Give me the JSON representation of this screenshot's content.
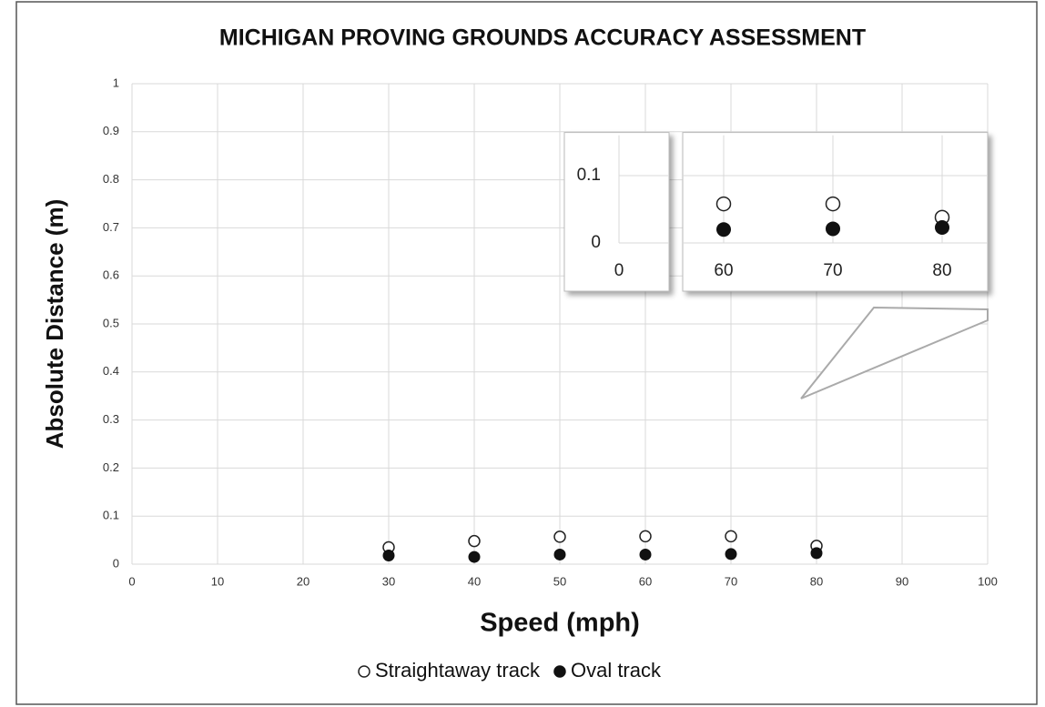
{
  "chart_data": {
    "type": "scatter",
    "title": "MICHIGAN PROVING GROUNDS ACCURACY ASSESSMENT",
    "x_label": "Speed (mph)",
    "y_label": "Absolute Distance (m)",
    "xlim": [
      0,
      100
    ],
    "xticks": [
      0,
      10,
      20,
      30,
      40,
      50,
      60,
      70,
      80,
      90,
      100
    ],
    "ylim": [
      0,
      1
    ],
    "yticks": [
      0,
      0.1,
      0.2,
      0.3,
      0.4,
      0.5,
      0.6,
      0.7,
      0.8,
      0.9,
      1
    ],
    "grid": true,
    "legend": "bottom",
    "x": [
      30,
      40,
      50,
      60,
      70,
      80
    ],
    "series": [
      {
        "name": "Straightaway track",
        "color": "#222222",
        "hollow": true,
        "values": [
          0.035,
          0.048,
          0.057,
          0.058,
          0.058,
          0.038
        ]
      },
      {
        "name": "Oval track",
        "color": "#111111",
        "hollow": false,
        "values": [
          0.018,
          0.015,
          0.02,
          0.02,
          0.021,
          0.023
        ]
      }
    ],
    "inset": {
      "ylim": [
        0,
        0.16
      ],
      "yticks": [
        0,
        0.1
      ],
      "xticks": [
        0,
        60,
        70,
        80
      ]
    }
  }
}
